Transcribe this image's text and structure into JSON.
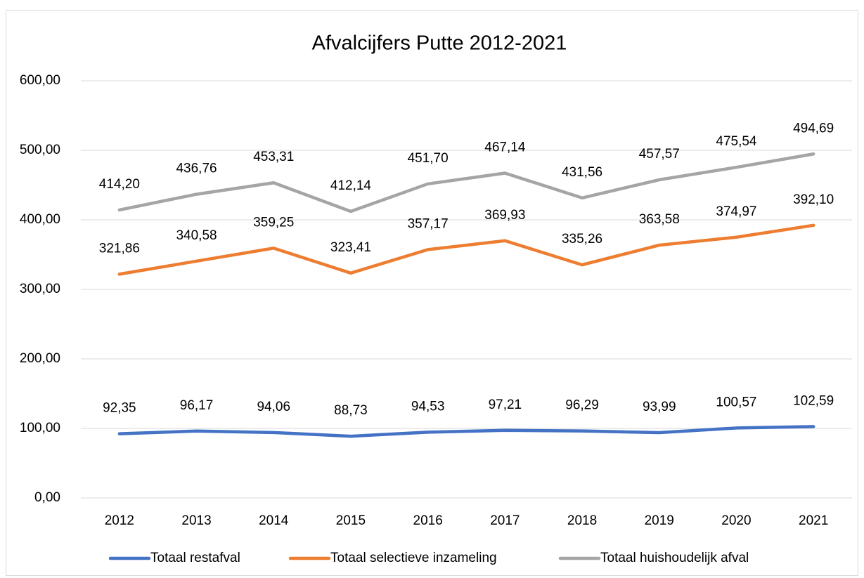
{
  "chart_data": {
    "type": "line",
    "title": "Afvalcijfers Putte 2012-2021",
    "categories": [
      "2012",
      "2013",
      "2014",
      "2015",
      "2016",
      "2017",
      "2018",
      "2019",
      "2020",
      "2021"
    ],
    "series": [
      {
        "name": "Totaal restafval",
        "color": "#4472c4",
        "values": [
          92.35,
          96.17,
          94.06,
          88.73,
          94.53,
          97.21,
          96.29,
          93.99,
          100.57,
          102.59
        ],
        "value_labels": [
          "92,35",
          "96,17",
          "94,06",
          "88,73",
          "94,53",
          "97,21",
          "96,29",
          "93,99",
          "100,57",
          "102,59"
        ]
      },
      {
        "name": "Totaal selectieve inzameling",
        "color": "#ed7d31",
        "values": [
          321.86,
          340.58,
          359.25,
          323.41,
          357.17,
          369.93,
          335.26,
          363.58,
          374.97,
          392.1
        ],
        "value_labels": [
          "321,86",
          "340,58",
          "359,25",
          "323,41",
          "357,17",
          "369,93",
          "335,26",
          "363,58",
          "374,97",
          "392,10"
        ]
      },
      {
        "name": "Totaal huishoudelijk afval",
        "color": "#a5a5a5",
        "values": [
          414.2,
          436.76,
          453.31,
          412.14,
          451.7,
          467.14,
          431.56,
          457.57,
          475.54,
          494.69
        ],
        "value_labels": [
          "414,20",
          "436,76",
          "453,31",
          "412,14",
          "451,70",
          "467,14",
          "431,56",
          "457,57",
          "475,54",
          "494,69"
        ]
      }
    ],
    "ylim": [
      0,
      600
    ],
    "yticks": [
      {
        "value": 0,
        "label": "0,00"
      },
      {
        "value": 100,
        "label": "100,00"
      },
      {
        "value": 200,
        "label": "200,00"
      },
      {
        "value": 300,
        "label": "300,00"
      },
      {
        "value": 400,
        "label": "400,00"
      },
      {
        "value": 500,
        "label": "500,00"
      },
      {
        "value": 600,
        "label": "600,00"
      }
    ],
    "grid": true,
    "legend": "bottom"
  }
}
